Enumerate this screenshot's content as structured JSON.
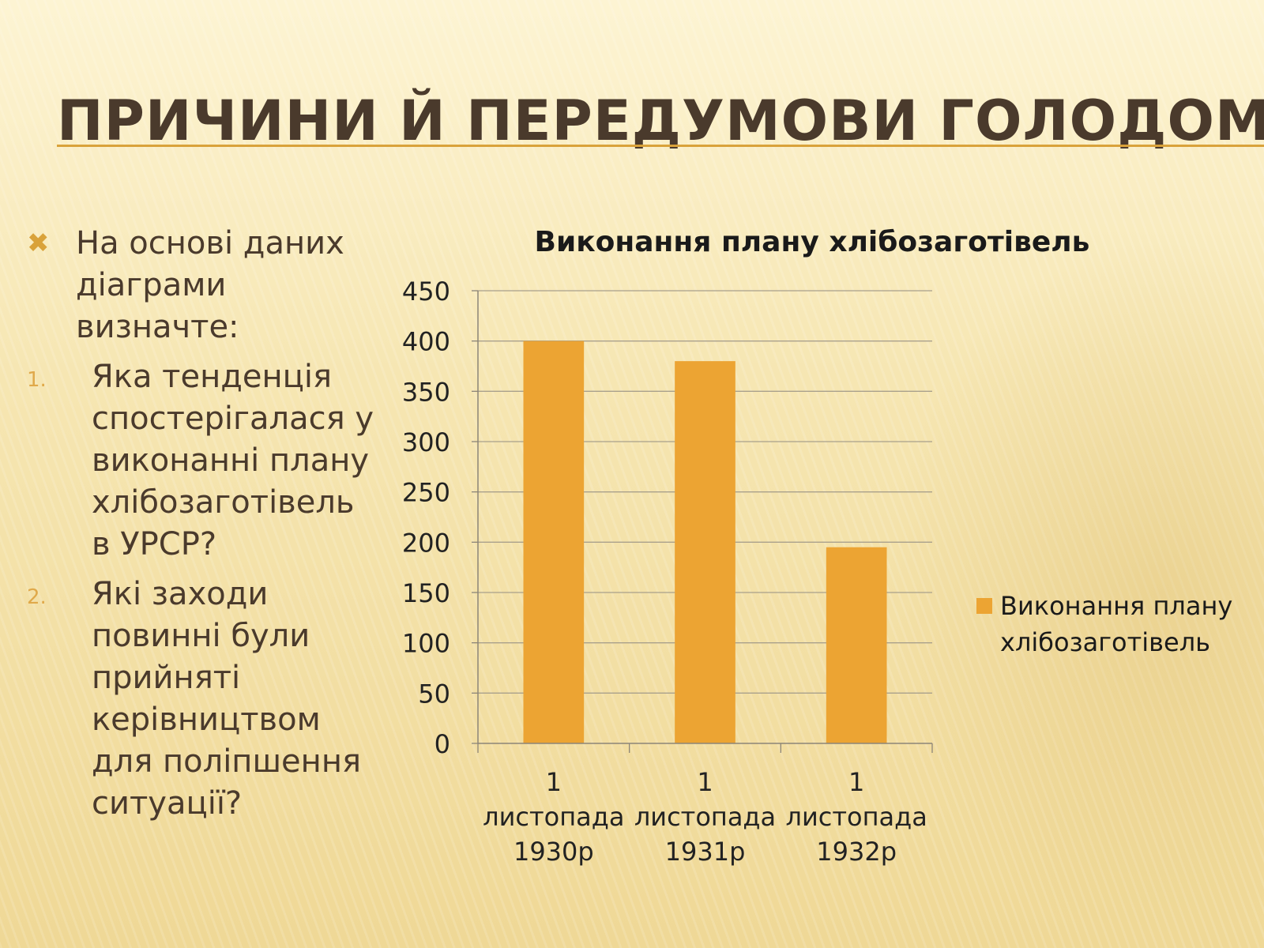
{
  "slide": {
    "title": "Причини й передумови голодомору.",
    "intro_text": "На основі даних діаграми визначте:",
    "questions": [
      {
        "number": "1.",
        "text": "Яка тенденція спостерігалася у виконанні плану хлібозаготівель в УРСР?"
      },
      {
        "number": "2.",
        "text": "Які заходи повинні були прийняті керівництвом для поліпшення ситуації?"
      }
    ]
  },
  "chart_data": {
    "type": "bar",
    "title": "Виконання плану хлібозаготівель",
    "categories": [
      [
        "1",
        "листопада",
        "1930р"
      ],
      [
        "1",
        "листопада",
        "1931р"
      ],
      [
        "1",
        "листопада",
        "1932р"
      ]
    ],
    "series": [
      {
        "name": "Виконання плану хлібозаготівель",
        "values": [
          400,
          380,
          195
        ],
        "color": "#eca433"
      }
    ],
    "ylim": [
      0,
      450
    ],
    "yticks": [
      0,
      50,
      100,
      150,
      200,
      250,
      300,
      350,
      400,
      450
    ],
    "grid": true,
    "legend_position": "right"
  },
  "colors": {
    "accent": "#d9a23a",
    "title_text": "#4a3a2c",
    "bar": "#eca433"
  }
}
